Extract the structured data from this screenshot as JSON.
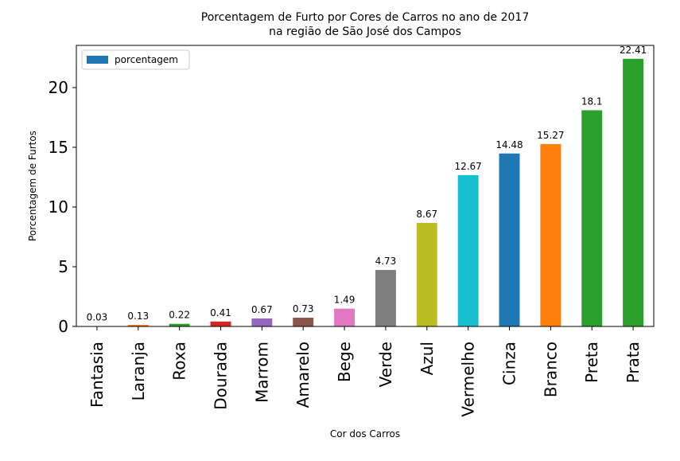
{
  "chart_data": {
    "type": "bar",
    "title_lines": [
      "Porcentagem de Furto por Cores de Carros no ano de 2017",
      "na região de São José dos Campos"
    ],
    "xlabel": "Cor dos Carros",
    "ylabel": "Porcentagem de Furtos",
    "categories": [
      "Fantasia",
      "Laranja",
      "Roxa",
      "Dourada",
      "Marrom",
      "Amarelo",
      "Bege",
      "Verde",
      "Azul",
      "Vermelho",
      "Cinza",
      "Branco",
      "Preta",
      "Prata"
    ],
    "values": [
      0.03,
      0.13,
      0.22,
      0.41,
      0.67,
      0.73,
      1.49,
      4.73,
      8.67,
      12.67,
      14.48,
      15.27,
      18.1,
      22.41
    ],
    "value_labels": [
      "0.03",
      "0.13",
      "0.22",
      "0.41",
      "0.67",
      "0.73",
      "1.49",
      "4.73",
      "8.67",
      "12.67",
      "14.48",
      "15.27",
      "18.1",
      "22.41"
    ],
    "bar_colors": [
      "#1f77b4",
      "#ff7f0e",
      "#2ca02c",
      "#d62728",
      "#9467bd",
      "#8c564b",
      "#e377c2",
      "#7f7f7f",
      "#bcbd22",
      "#17becf",
      "#1f77b4",
      "#ff7f0e",
      "#2ca02c",
      "#2ca02c"
    ],
    "yticks": [
      0,
      5,
      10,
      15,
      20
    ],
    "ytick_labels": [
      "0",
      "5",
      "10",
      "15",
      "20"
    ],
    "ylim": [
      0,
      23.53
    ],
    "grid": false,
    "legend": {
      "label": "porcentagem",
      "color": "#1f77b4",
      "position": "upper-left"
    }
  }
}
